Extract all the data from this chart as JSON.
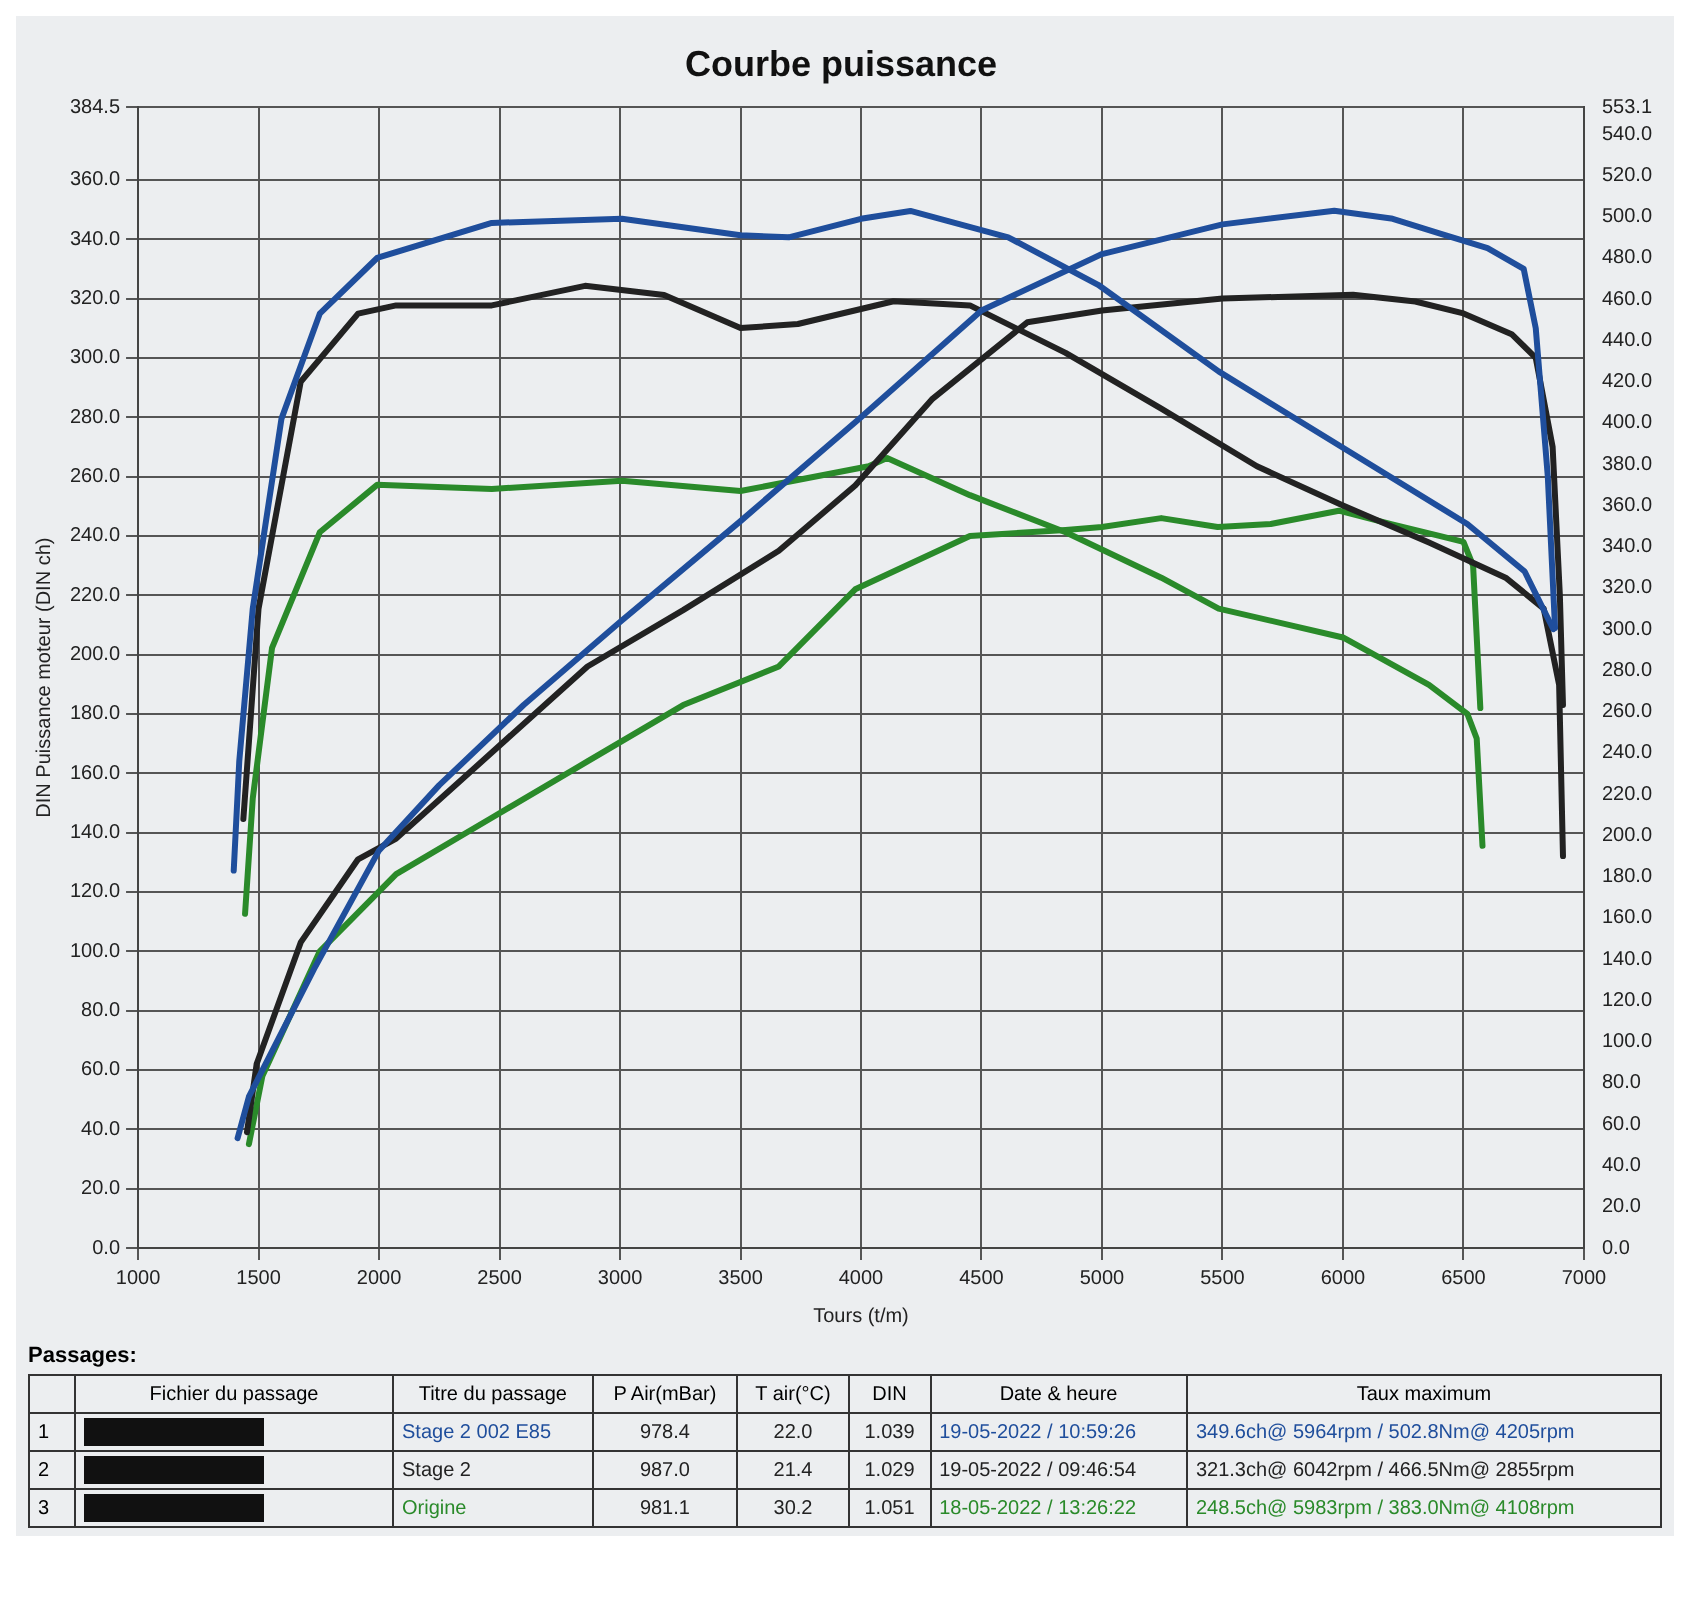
{
  "chart_data": {
    "type": "line",
    "title": "Courbe puissance",
    "xlabel": "Tours (t/m)",
    "ylabel": "DIN Puissance moteur (DIN ch)",
    "xlim": [
      1000,
      7000
    ],
    "xticks": [
      1000,
      1500,
      2000,
      2500,
      3000,
      3500,
      4000,
      4500,
      5000,
      5500,
      6000,
      6500,
      7000
    ],
    "ylim": [
      0,
      384.5
    ],
    "yticks": [
      {
        "value": 0,
        "label": "0.0"
      },
      {
        "value": 20,
        "label": "20.0"
      },
      {
        "value": 40,
        "label": "40.0"
      },
      {
        "value": 60,
        "label": "60.0"
      },
      {
        "value": 80,
        "label": "80.0"
      },
      {
        "value": 100,
        "label": "100.0"
      },
      {
        "value": 120,
        "label": "120.0"
      },
      {
        "value": 140,
        "label": "140.0"
      },
      {
        "value": 160,
        "label": "160.0"
      },
      {
        "value": 180,
        "label": "180.0"
      },
      {
        "value": 200,
        "label": "200.0"
      },
      {
        "value": 220,
        "label": "220.0"
      },
      {
        "value": 240,
        "label": "240.0"
      },
      {
        "value": 260,
        "label": "260.0"
      },
      {
        "value": 280,
        "label": "280.0"
      },
      {
        "value": 300,
        "label": "300.0"
      },
      {
        "value": 320,
        "label": "320.0"
      },
      {
        "value": 340,
        "label": "340.0"
      },
      {
        "value": 360,
        "label": "360.0"
      },
      384.5
    ],
    "y2lim": [
      0,
      553.1
    ],
    "y2ticks": [
      {
        "value": 0,
        "label": "0.0"
      },
      {
        "value": 20,
        "label": "20.0"
      },
      {
        "value": 40,
        "label": "40.0"
      },
      {
        "value": 60,
        "label": "60.0"
      },
      {
        "value": 80,
        "label": "80.0"
      },
      {
        "value": 100,
        "label": "100.0"
      },
      {
        "value": 120,
        "label": "120.0"
      },
      {
        "value": 140,
        "label": "140.0"
      },
      {
        "value": 160,
        "label": "160.0"
      },
      {
        "value": 180,
        "label": "180.0"
      },
      {
        "value": 200,
        "label": "200.0"
      },
      {
        "value": 220,
        "label": "220.0"
      },
      {
        "value": 240,
        "label": "240.0"
      },
      {
        "value": 260,
        "label": "260.0"
      },
      {
        "value": 280,
        "label": "280.0"
      },
      {
        "value": 300,
        "label": "300.0"
      },
      {
        "value": 320,
        "label": "320.0"
      },
      {
        "value": 340,
        "label": "340.0"
      },
      {
        "value": 360,
        "label": "360.0"
      },
      {
        "value": 380,
        "label": "380.0"
      },
      {
        "value": 400,
        "label": "400.0"
      },
      {
        "value": 420,
        "label": "420.0"
      },
      {
        "value": 440,
        "label": "440.0"
      },
      {
        "value": 460,
        "label": "460.0"
      },
      {
        "value": 480,
        "label": "480.0"
      },
      {
        "value": 500,
        "label": "500.0"
      },
      {
        "value": 520,
        "label": "520.0"
      },
      {
        "value": 540,
        "label": "540.0"
      },
      553.1
    ],
    "grid": "x_and_y_left",
    "legend": false,
    "marker": "none",
    "line_style": "solid",
    "series": [
      {
        "color": "#1f4e9c",
        "axis": "y2",
        "x": [
          1397,
          1420,
          1476,
          1595,
          1754,
          1992,
          2468,
          3008,
          3500,
          3700,
          4000,
          4205,
          4611,
          4984,
          5484,
          6000,
          6516,
          6754,
          6873
        ],
        "values": [
          183,
          236,
          310,
          402,
          453,
          480,
          497,
          499,
          491,
          490,
          499,
          502.8,
          490,
          467,
          425,
          388,
          351,
          328,
          300
        ]
      },
      {
        "color": "#1f4e9c",
        "x": [
          1413,
          1460,
          1730,
          2000,
          2250,
          2600,
          3000,
          3500,
          4000,
          4500,
          5000,
          5500,
          5964,
          6200,
          6400,
          6600,
          6750,
          6800,
          6850,
          6880
        ],
        "values": [
          37,
          51,
          94,
          134,
          156,
          183,
          211,
          245,
          280,
          316,
          335,
          345,
          349.6,
          347,
          342,
          337,
          330,
          310,
          260,
          209
        ]
      },
      {
        "color": "#222222",
        "axis": "y2",
        "x": [
          1437,
          1500,
          1675,
          1913,
          2071,
          2468,
          2855,
          3183,
          3500,
          3738,
          4135,
          4452,
          4849,
          5246,
          5643,
          6000,
          6357,
          6675,
          6833,
          6897,
          6913
        ],
        "values": [
          208,
          310,
          420,
          453,
          457,
          457,
          466.5,
          462,
          446,
          448,
          459,
          457,
          434,
          407,
          379,
          360,
          342,
          325,
          310,
          273,
          190
        ]
      },
      {
        "color": "#222222",
        "x": [
          1452,
          1492,
          1675,
          1913,
          2071,
          2468,
          2865,
          3262,
          3659,
          3976,
          4294,
          4690,
          5000,
          5500,
          6042,
          6300,
          6500,
          6700,
          6800,
          6870,
          6900,
          6913
        ],
        "values": [
          39,
          62,
          103,
          131,
          138,
          167,
          196,
          215,
          235,
          257,
          286,
          312,
          316,
          320,
          321.3,
          319,
          315,
          308,
          300,
          270,
          220,
          183
        ]
      },
      {
        "color": "#2a8a2a",
        "axis": "y2",
        "x": [
          1444,
          1476,
          1556,
          1754,
          1992,
          2468,
          3008,
          3500,
          4032,
          4108,
          4452,
          4849,
          5246,
          5484,
          6000,
          6357,
          6516,
          6555,
          6579
        ],
        "values": [
          162,
          218,
          291,
          347,
          370,
          368,
          372,
          367,
          379,
          383.0,
          365,
          347,
          325,
          310,
          296,
          273,
          259,
          247,
          195
        ]
      },
      {
        "color": "#2a8a2a",
        "x": [
          1460,
          1516,
          1754,
          2071,
          2468,
          2865,
          3262,
          3659,
          3976,
          4452,
          4849,
          5000,
          5246,
          5480,
          5700,
          5983,
          6200,
          6400,
          6500,
          6540,
          6570
        ],
        "values": [
          35,
          58,
          100,
          126,
          145,
          164,
          183,
          196,
          222,
          240,
          242,
          243,
          246,
          243,
          244,
          248.5,
          244,
          240,
          238,
          230,
          182
        ]
      }
    ],
    "annotations": [
      "Passages:",
      "Fichier du passage",
      "Titre du passage",
      "P Air(mBar)",
      "T air(°C)",
      "DIN",
      "Date & heure",
      "Taux maximum",
      "1",
      "Stage 2 002 E85",
      "978.4",
      "22.0",
      "1.039",
      "19-05-2022 / 10:59:26",
      "349.6ch@ 5964rpm / 502.8Nm@ 4205rpm",
      "2",
      "Stage 2",
      "987.0",
      "21.4",
      "1.029",
      "19-05-2022 / 09:46:54",
      "321.3ch@ 6042rpm / 466.5Nm@ 2855rpm",
      "3",
      "Origine",
      "981.1",
      "30.2",
      "1.051",
      "18-05-2022 / 13:26:22",
      "248.5ch@ 5983rpm / 383.0Nm@ 4108rpm"
    ]
  }
}
